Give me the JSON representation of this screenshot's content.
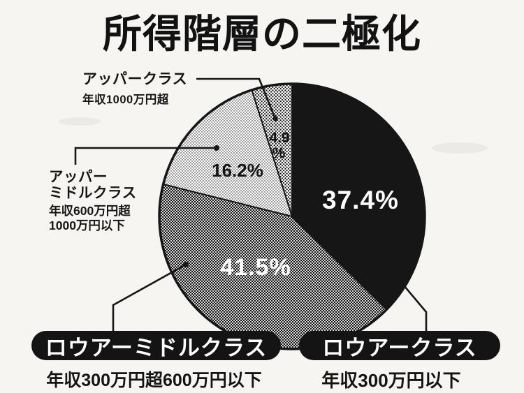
{
  "title": "所得階層の二極化",
  "chart_data": {
    "type": "pie",
    "title": "所得階層の二極化",
    "direction": "clockwise",
    "start_angle_deg": 0,
    "total": 100,
    "slices": [
      {
        "label": "ロウアークラス",
        "income": "年収300万円以下",
        "value": 37.4,
        "display": "37.4%",
        "pattern": "solid-black"
      },
      {
        "label": "ロウアーミドルクラス",
        "income": "年収300万円超600万円以下",
        "value": 41.5,
        "display": "41.5%",
        "pattern": "dark-halftone"
      },
      {
        "label": "アッパーミドルクラス",
        "income": "年収600万円超1000万円以下",
        "value": 16.2,
        "display": "16.2%",
        "pattern": "light-halftone"
      },
      {
        "label": "アッパークラス",
        "income": "年収1000万円超",
        "value": 4.9,
        "display": "4.9%",
        "display_line1": "4.9",
        "display_line2": "%",
        "pattern": "medium-halftone"
      }
    ]
  },
  "callouts": {
    "upper_class": {
      "name": "アッパークラス",
      "income": "年収1000万円超"
    },
    "upper_middle": {
      "name_line1": "アッパー",
      "name_line2": "ミドルクラス",
      "income_line1": "年収600万円超",
      "income_line2": "1000万円以下"
    },
    "lower_middle": {
      "name": "ロウアーミドルクラス",
      "income": "年収300万円超600万円以下"
    },
    "lower": {
      "name": "ロウアークラス",
      "income": "年収300万円以下"
    }
  },
  "colors": {
    "ink": "#161616",
    "paper": "#f6f5f2",
    "pill_bg": "#141414",
    "pill_text": "#ffffff"
  }
}
